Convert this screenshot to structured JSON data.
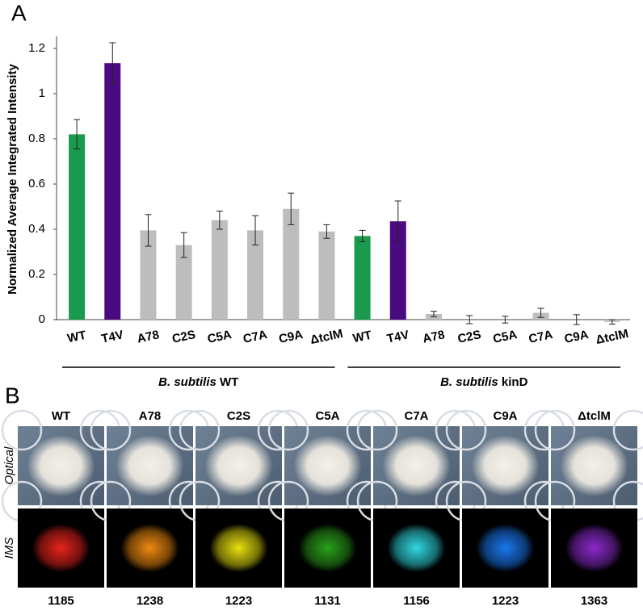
{
  "panel_labels": [
    "A",
    "B"
  ],
  "chart_data": {
    "type": "bar",
    "y_label": "Normalized Average Integrated Intensity",
    "categories": [
      "WT",
      "T4V",
      "A78",
      "C2S",
      "C5A",
      "C7A",
      "C9A",
      "ΔtclM",
      "WT",
      "T4V",
      "A78",
      "C2S",
      "C5A",
      "C7A",
      "C9A",
      "ΔtclM"
    ],
    "values": [
      0.82,
      1.135,
      0.395,
      0.33,
      0.44,
      0.395,
      0.49,
      0.39,
      0.37,
      0.435,
      0.025,
      0,
      0,
      0.03,
      0,
      -0.01
    ],
    "errors": [
      0.065,
      0.09,
      0.07,
      0.055,
      0.04,
      0.065,
      0.07,
      0.03,
      0.025,
      0.09,
      0.012,
      0.018,
      0.015,
      0.02,
      0.022,
      0.01
    ],
    "colors": [
      "#1a9a4c",
      "#4a0a80",
      "#bdbdbd",
      "#bdbdbd",
      "#bdbdbd",
      "#bdbdbd",
      "#bdbdbd",
      "#bdbdbd",
      "#1a9a4c",
      "#4a0a80",
      "#bdbdbd",
      "#bdbdbd",
      "#bdbdbd",
      "#bdbdbd",
      "#bdbdbd",
      "#bdbdbd"
    ],
    "groups": [
      {
        "species": "B. subtilis",
        "strain": "WT"
      },
      {
        "species": "B. subtilis",
        "strain": "kinD"
      }
    ],
    "ylim": [
      -0.02,
      1.25
    ],
    "yticks": [
      0,
      0.2,
      0.4,
      0.6,
      0.8,
      1,
      1.2
    ],
    "grid": false
  },
  "panel_b": {
    "row_labels": [
      "Optical",
      "IMS"
    ],
    "columns": [
      {
        "label": "WT",
        "mz": 1185,
        "color": "#e8241c"
      },
      {
        "label": "A78",
        "mz": 1238,
        "color": "#ef8a10"
      },
      {
        "label": "C2S",
        "mz": 1223,
        "color": "#e8e010"
      },
      {
        "label": "C5A",
        "mz": 1131,
        "color": "#2aa01a"
      },
      {
        "label": "C7A",
        "mz": 1156,
        "color": "#30d8e0"
      },
      {
        "label": "C9A",
        "mz": 1223,
        "color": "#1a78f0"
      },
      {
        "label": "ΔtclM",
        "mz": 1363,
        "color": "#8a2ac8"
      }
    ]
  }
}
